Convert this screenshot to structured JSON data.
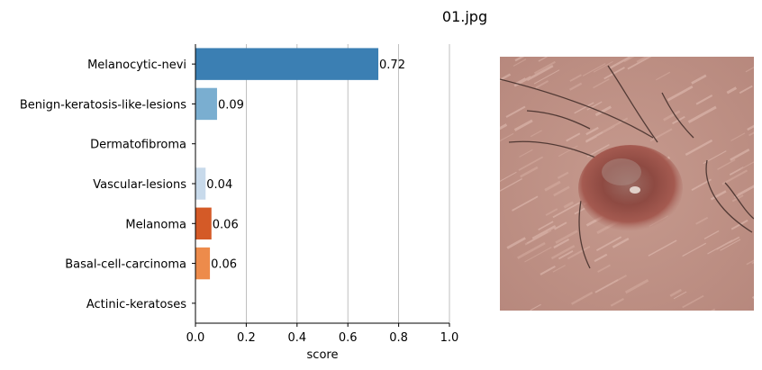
{
  "figure": {
    "title": "01.jpg"
  },
  "chart_data": {
    "type": "bar",
    "orientation": "horizontal",
    "categories": [
      "Melanocytic-nevi",
      "Benign-keratosis-like-lesions",
      "Dermatofibroma",
      "Vascular-lesions",
      "Melanoma",
      "Basal-cell-carcinoma",
      "Actinic-keratoses"
    ],
    "values": [
      0.72,
      0.085,
      0.0,
      0.04,
      0.063,
      0.057,
      0.0
    ],
    "value_labels": [
      "0.72",
      "0.09",
      "",
      "0.04",
      "0.06",
      "0.06",
      ""
    ],
    "colors": [
      "#3b7fb3",
      "#7aaed0",
      "#c8daeb",
      "#c8daeb",
      "#d45a27",
      "#ed8b4b",
      "#f3b888"
    ],
    "xlabel": "score",
    "ylabel": "",
    "xlim": [
      0,
      1
    ],
    "xticks": [
      0,
      0.2,
      0.4,
      0.6,
      0.8,
      1.0
    ],
    "xtick_labels": [
      "0.0",
      "0.2",
      "0.4",
      "0.6",
      "0.8",
      "1.0"
    ],
    "grid": "x"
  },
  "image": {
    "caption": "skin lesion photo"
  }
}
